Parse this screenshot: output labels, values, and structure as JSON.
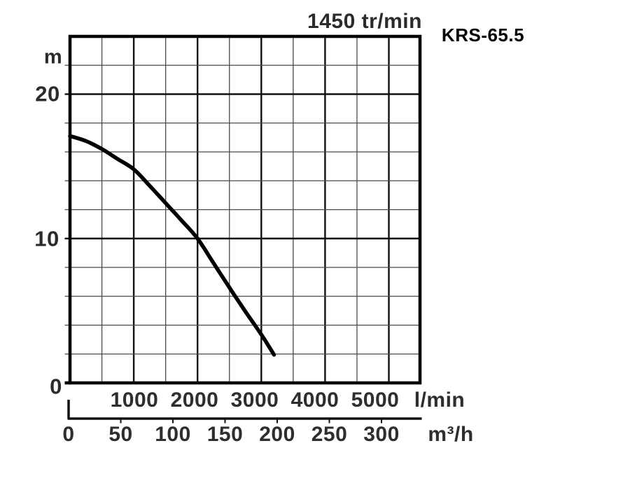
{
  "page": {
    "background": "#ffffff"
  },
  "header": {
    "speed_label": "1450 tr/min",
    "model_label": "KRS-65.5"
  },
  "axes": {
    "head": {
      "unit": "m",
      "tick_labels": [
        "20",
        "10",
        "0"
      ],
      "tick_values_m": [
        20,
        10,
        0
      ]
    },
    "flow_lmin": {
      "unit": "l/min",
      "tick_labels": [
        "1000",
        "2000",
        "3000",
        "4000",
        "5000"
      ],
      "tick_values": [
        1000,
        2000,
        3000,
        4000,
        5000
      ]
    },
    "flow_m3h": {
      "unit": "m³/h",
      "tick_labels": [
        "0",
        "50",
        "100",
        "150",
        "200",
        "250",
        "300"
      ],
      "tick_values": [
        0,
        50,
        100,
        150,
        200,
        250,
        300
      ]
    }
  },
  "chart_data": {
    "type": "line",
    "title": "1450 tr/min",
    "subtitle": "KRS-65.5",
    "xlabel_primary": "l/min",
    "xlabel_secondary": "m³/h",
    "ylabel": "m",
    "x_range_lmin": [
      0,
      5500
    ],
    "y_range_m": [
      0,
      24
    ],
    "x_minor_step_lmin": 500,
    "x_major_step_lmin": 1000,
    "y_minor_step_m": 2,
    "y_major_step_m": 10,
    "grid": "on",
    "legend": "none",
    "series": [
      {
        "name": "KRS-65.5 head-flow curve",
        "x_lmin": [
          0,
          250,
          500,
          750,
          1000,
          1250,
          1500,
          1750,
          2000,
          2250,
          2500,
          2750,
          3000,
          3200
        ],
        "y_head_m": [
          17.1,
          16.75,
          16.2,
          15.5,
          14.8,
          13.65,
          12.45,
          11.25,
          10.0,
          8.3,
          6.6,
          4.95,
          3.35,
          1.95
        ]
      }
    ],
    "colors": {
      "curve": "#000000",
      "border": "#000000",
      "grid_major": "#111111",
      "grid_minor": "#4a4a4a",
      "text": "#2b2b2b",
      "model_text": "#000000"
    }
  }
}
